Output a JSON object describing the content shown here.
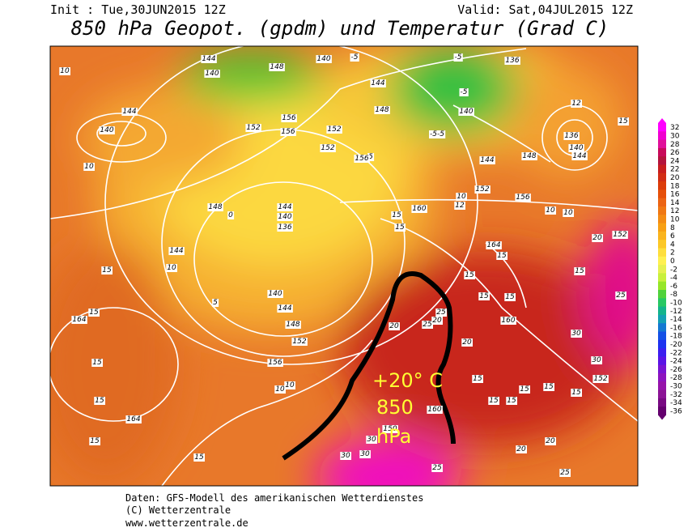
{
  "header": {
    "init": "Init : Tue,30JUN2015 12Z",
    "valid": "Valid: Sat,04JUL2015 12Z",
    "title": "850 hPa Geopot. (gpdm) und Temperatur (Grad C)"
  },
  "colorbar": {
    "levels": [
      32,
      30,
      28,
      26,
      24,
      22,
      20,
      18,
      16,
      14,
      12,
      10,
      8,
      6,
      4,
      2,
      0,
      -2,
      -4,
      -6,
      -8,
      -10,
      -12,
      -14,
      -16,
      -18,
      -20,
      -22,
      -24,
      -26,
      -28,
      -30,
      -32,
      -34,
      -36
    ],
    "colors": [
      "#ff00ff",
      "#f000d0",
      "#e0109a",
      "#c80a5a",
      "#b4143c",
      "#c81e1e",
      "#d22d14",
      "#dc3c0a",
      "#e6500a",
      "#ec6414",
      "#f07814",
      "#f48c14",
      "#f8a014",
      "#fab41e",
      "#fcc828",
      "#fede3c",
      "#fff050",
      "#e6f050",
      "#c8f03c",
      "#96e628",
      "#50d23c",
      "#28c864",
      "#14b48c",
      "#14a0b4",
      "#1478d2",
      "#1450e6",
      "#1e32f0",
      "#3c1ef0",
      "#5a14e6",
      "#7814d2",
      "#8c14be",
      "#9614aa",
      "#8c1496",
      "#780a82",
      "#64006e"
    ]
  },
  "map": {
    "annotation": [
      "+20° C",
      "850",
      "hPa"
    ],
    "labels": [
      "10",
      "144",
      "140",
      "148",
      "140",
      "-5",
      "-5",
      "136",
      "10",
      "144",
      "140",
      "152",
      "156",
      "156",
      "152",
      "152",
      "5",
      "156",
      "144",
      "148",
      "-5",
      "140",
      "-5-5",
      "12",
      "136",
      "140",
      "144",
      "15",
      "148",
      "144",
      "152",
      "156",
      "10",
      "10",
      "12",
      "10",
      "148",
      "0",
      "144",
      "140",
      "136",
      "15",
      "160",
      "15",
      "144",
      "10",
      "164",
      "15",
      "152",
      "20",
      "140",
      "144",
      "148",
      "152",
      "156",
      "5",
      "15",
      "164",
      "15",
      "15",
      "15",
      "164",
      "15",
      "15",
      "10",
      "10",
      "25",
      "25",
      "20",
      "20",
      "20",
      "160",
      "15",
      "15",
      "15",
      "30",
      "30",
      "25",
      "15",
      "152",
      "15",
      "15",
      "15",
      "15",
      "15",
      "15",
      "150",
      "160",
      "30",
      "30",
      "30",
      "25",
      "20",
      "20",
      "25"
    ]
  },
  "footer": [
    "Daten: GFS-Modell des amerikanischen Wetterdienstes",
    "(C) Wetterzentrale",
    "www.wetterzentrale.de"
  ]
}
